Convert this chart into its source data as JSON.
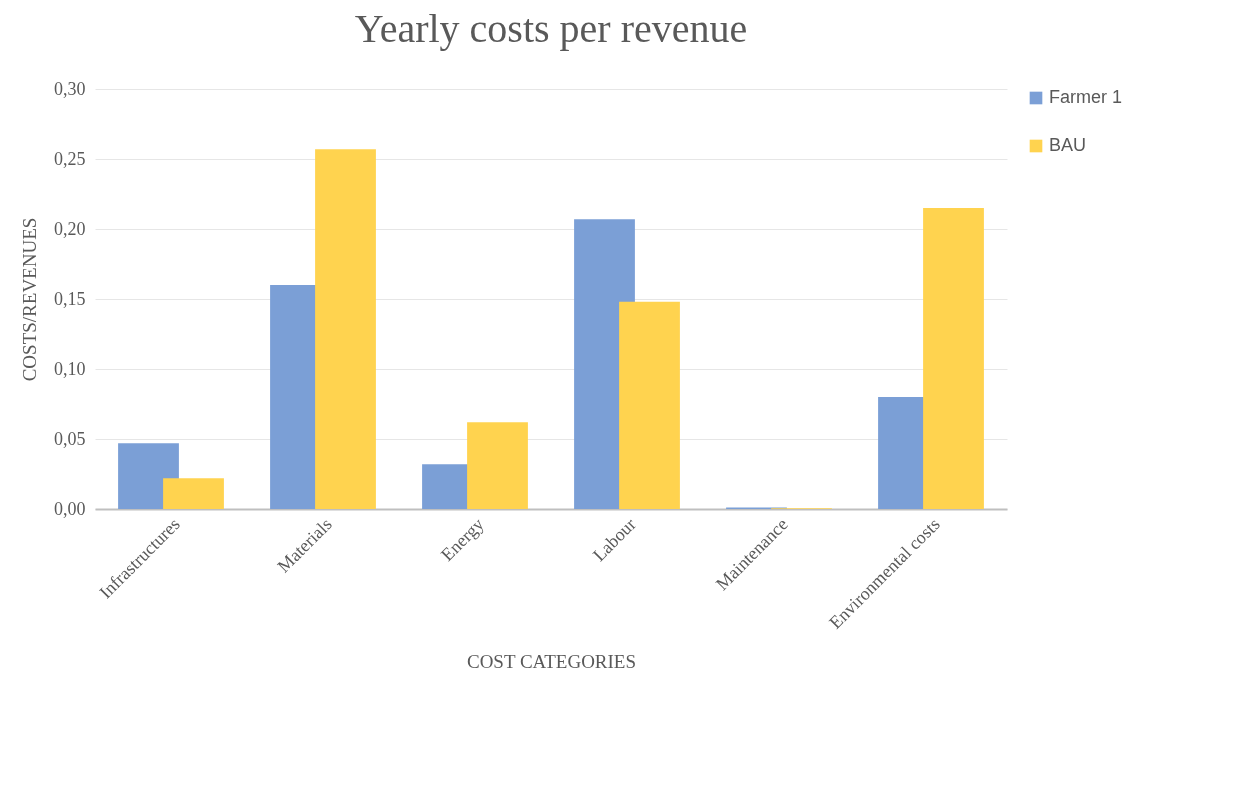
{
  "chart_data": {
    "type": "bar",
    "title": "Yearly costs per revenue",
    "xlabel": "COST CATEGORIES",
    "ylabel": "COSTS/REVENUES",
    "categories": [
      "Infrastructures",
      "Materials",
      "Energy",
      "Labour",
      "Maintenance",
      "Environmental costs"
    ],
    "series": [
      {
        "name": "Farmer 1",
        "color": "#7b9fd6",
        "values": [
          0.047,
          0.16,
          0.032,
          0.207,
          0.001,
          0.08
        ]
      },
      {
        "name": "BAU",
        "color": "#ffd34f",
        "values": [
          0.022,
          0.257,
          0.062,
          0.148,
          0.0005,
          0.215
        ]
      }
    ],
    "ylim": [
      0,
      0.3
    ],
    "yticks": [
      {
        "value": 0,
        "label": "0,00"
      },
      {
        "value": 0.05,
        "label": "0,05"
      },
      {
        "value": 0.1,
        "label": "0,10"
      },
      {
        "value": 0.15,
        "label": "0,15"
      },
      {
        "value": 0.2,
        "label": "0,20"
      },
      {
        "value": 0.25,
        "label": "0,25"
      },
      {
        "value": 0.3,
        "label": "0,30"
      }
    ],
    "grid": "y",
    "legend": "right"
  }
}
